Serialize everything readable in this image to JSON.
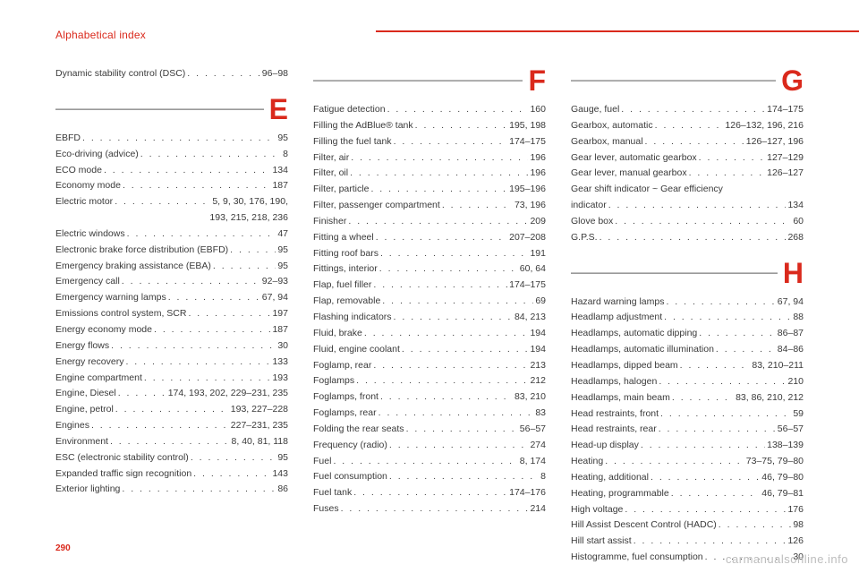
{
  "header": "Alphabetical index",
  "page_number": "290",
  "watermark": "carmanualsonline.info",
  "colors": {
    "accent": "#da291c",
    "text": "#3a3a3a",
    "rule": "#bfbfbf"
  },
  "columns": [
    {
      "sections": [
        {
          "letter": null,
          "entries": [
            {
              "label": "Dynamic stability control (DSC)",
              "pages": "96–98"
            }
          ]
        },
        {
          "letter": "E",
          "entries": [
            {
              "label": "EBFD",
              "pages": "95"
            },
            {
              "label": "Eco-driving (advice)",
              "pages": "8"
            },
            {
              "label": "ECO mode",
              "pages": "134"
            },
            {
              "label": "Economy mode",
              "pages": "187"
            },
            {
              "label": "Electric motor",
              "pages": "5, 9, 30, 176, 190,"
            },
            {
              "cont": "193, 215, 218, 236"
            },
            {
              "label": "Electric windows",
              "pages": "47"
            },
            {
              "label": "Electronic brake force distribution (EBFD)",
              "pages": "95"
            },
            {
              "label": "Emergency braking assistance (EBA)",
              "pages": "95"
            },
            {
              "label": "Emergency call",
              "pages": "92–93"
            },
            {
              "label": "Emergency warning lamps",
              "pages": "67, 94"
            },
            {
              "label": "Emissions control system, SCR",
              "pages": "197"
            },
            {
              "label": "Energy economy mode",
              "pages": "187"
            },
            {
              "label": "Energy flows",
              "pages": "30"
            },
            {
              "label": "Energy recovery",
              "pages": "133"
            },
            {
              "label": "Engine compartment",
              "pages": "193"
            },
            {
              "label": "Engine, Diesel",
              "pages": "174, 193, 202, 229–231, 235"
            },
            {
              "label": "Engine, petrol",
              "pages": "193, 227–228"
            },
            {
              "label": "Engines",
              "pages": "227–231, 235"
            },
            {
              "label": "Environment",
              "pages": "8, 40, 81, 118"
            },
            {
              "label": "ESC (electronic stability control)",
              "pages": "95"
            },
            {
              "label": "Expanded traffic sign recognition",
              "pages": "143"
            },
            {
              "label": "Exterior lighting",
              "pages": "86"
            }
          ]
        }
      ]
    },
    {
      "sections": [
        {
          "letter": "F",
          "entries": [
            {
              "label": "Fatigue detection",
              "pages": "160"
            },
            {
              "label": "Filling the AdBlue® tank",
              "pages": "195, 198"
            },
            {
              "label": "Filling the fuel tank",
              "pages": "174–175"
            },
            {
              "label": "Filter, air",
              "pages": "196"
            },
            {
              "label": "Filter, oil",
              "pages": "196"
            },
            {
              "label": "Filter, particle",
              "pages": "195–196"
            },
            {
              "label": "Filter, passenger compartment",
              "pages": "73, 196"
            },
            {
              "label": "Finisher",
              "pages": "209"
            },
            {
              "label": "Fitting a wheel",
              "pages": "207–208"
            },
            {
              "label": "Fitting roof bars",
              "pages": "191"
            },
            {
              "label": "Fittings, interior",
              "pages": "60, 64"
            },
            {
              "label": "Flap, fuel filler",
              "pages": "174–175"
            },
            {
              "label": "Flap, removable",
              "pages": "69"
            },
            {
              "label": "Flashing indicators",
              "pages": "84, 213"
            },
            {
              "label": "Fluid, brake",
              "pages": "194"
            },
            {
              "label": "Fluid, engine coolant",
              "pages": "194"
            },
            {
              "label": "Foglamp, rear",
              "pages": "213"
            },
            {
              "label": "Foglamps",
              "pages": "212"
            },
            {
              "label": "Foglamps, front",
              "pages": "83, 210"
            },
            {
              "label": "Foglamps, rear",
              "pages": "83"
            },
            {
              "label": "Folding the rear seats",
              "pages": "56–57"
            },
            {
              "label": "Frequency (radio)",
              "pages": "274"
            },
            {
              "label": "Fuel",
              "pages": "8, 174"
            },
            {
              "label": "Fuel consumption",
              "pages": "8"
            },
            {
              "label": "Fuel tank",
              "pages": "174–176"
            },
            {
              "label": "Fuses",
              "pages": "214"
            }
          ]
        }
      ]
    },
    {
      "sections": [
        {
          "letter": "G",
          "entries": [
            {
              "label": "Gauge, fuel",
              "pages": "174–175"
            },
            {
              "label": "Gearbox, automatic",
              "pages": "126–132, 196, 216"
            },
            {
              "label": "Gearbox, manual",
              "pages": "126–127, 196"
            },
            {
              "label": "Gear lever, automatic gearbox",
              "pages": "127–129"
            },
            {
              "label": "Gear lever, manual gearbox",
              "pages": "126–127"
            },
            {
              "plain": "Gear shift indicator ~ Gear efficiency"
            },
            {
              "label": "indicator",
              "pages": "134"
            },
            {
              "label": "Glove box",
              "pages": "60"
            },
            {
              "label": "G.P.S.",
              "pages": "268"
            }
          ]
        },
        {
          "letter": "H",
          "entries": [
            {
              "label": "Hazard warning lamps",
              "pages": "67, 94"
            },
            {
              "label": "Headlamp adjustment",
              "pages": "88"
            },
            {
              "label": "Headlamps, automatic dipping",
              "pages": "86–87"
            },
            {
              "label": "Headlamps, automatic illumination",
              "pages": "84–86"
            },
            {
              "label": "Headlamps, dipped beam",
              "pages": "83, 210–211"
            },
            {
              "label": "Headlamps, halogen",
              "pages": "210"
            },
            {
              "label": "Headlamps, main beam",
              "pages": "83, 86, 210, 212"
            },
            {
              "label": "Head restraints, front",
              "pages": "59"
            },
            {
              "label": "Head restraints, rear",
              "pages": "56–57"
            },
            {
              "label": "Head-up display",
              "pages": "138–139"
            },
            {
              "label": "Heating",
              "pages": "73–75, 79–80"
            },
            {
              "label": "Heating, additional",
              "pages": "46, 79–80"
            },
            {
              "label": "Heating, programmable",
              "pages": "46, 79–81"
            },
            {
              "label": "High voltage",
              "pages": "176"
            },
            {
              "label": "Hill Assist Descent Control (HADC)",
              "pages": "98"
            },
            {
              "label": "Hill start assist",
              "pages": "126"
            },
            {
              "label": "Histogramme, fuel consumption",
              "pages": "30"
            }
          ]
        }
      ]
    }
  ]
}
